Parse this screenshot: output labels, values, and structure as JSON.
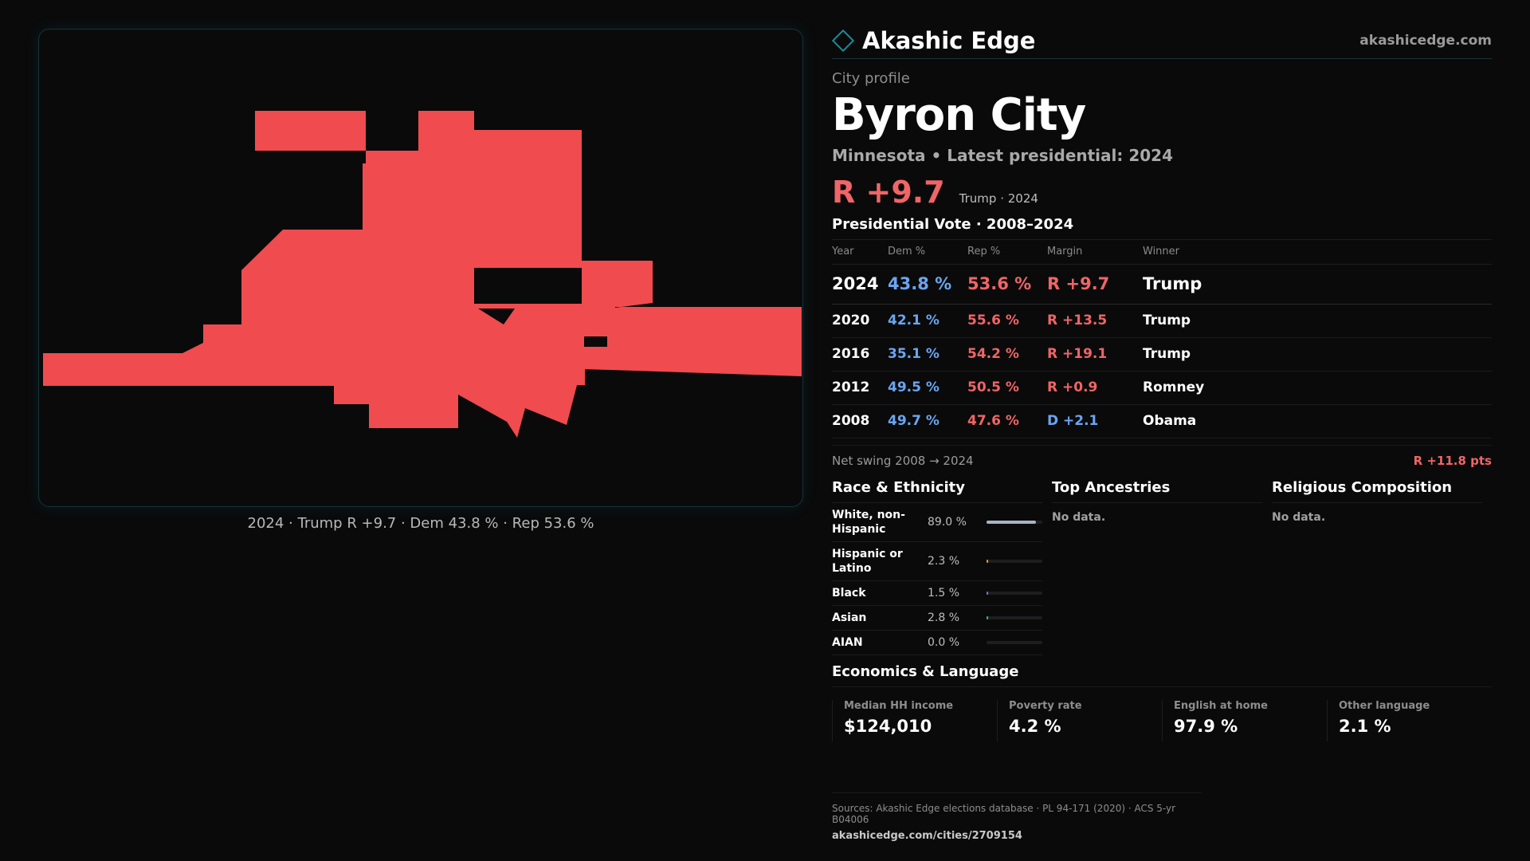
{
  "brand": {
    "name": "Akashic Edge",
    "url": "akashicedge.com",
    "accent": "#1f8a98"
  },
  "map": {
    "fill_color": "#f04b4e",
    "caption": "2024 · Trump R +9.7 · Dem 43.8 % · Rep 53.6 %"
  },
  "profile": {
    "kicker": "City profile",
    "city": "Byron City",
    "subline": "Minnesota • Latest presidential: 2024",
    "headline_margin": "R +9.7",
    "headline_who": "Trump · 2024"
  },
  "vote": {
    "title": "Presidential Vote · 2008–2024",
    "headers": {
      "year": "Year",
      "dem": "Dem %",
      "rep": "Rep %",
      "margin": "Margin",
      "winner": "Winner"
    },
    "rows": [
      {
        "year": "2024",
        "dem": "43.8 %",
        "rep": "53.6 %",
        "margin": "R +9.7",
        "party": "R",
        "winner": "Trump"
      },
      {
        "year": "2020",
        "dem": "42.1 %",
        "rep": "55.6 %",
        "margin": "R +13.5",
        "party": "R",
        "winner": "Trump"
      },
      {
        "year": "2016",
        "dem": "35.1 %",
        "rep": "54.2 %",
        "margin": "R +19.1",
        "party": "R",
        "winner": "Trump"
      },
      {
        "year": "2012",
        "dem": "49.5 %",
        "rep": "50.5 %",
        "margin": "R +0.9",
        "party": "R",
        "winner": "Romney"
      },
      {
        "year": "2008",
        "dem": "49.7 %",
        "rep": "47.6 %",
        "margin": "D +2.1",
        "party": "D",
        "winner": "Obama"
      }
    ],
    "colors": {
      "dem": "#6aa6f0",
      "rep": "#f06567"
    }
  },
  "swing": {
    "label": "Net swing 2008 → 2024",
    "value": "R +11.8 pts"
  },
  "race": {
    "title": "Race & Ethnicity",
    "rows": [
      {
        "label": "White, non-Hispanic",
        "pct": "89.0 %",
        "value": 89.0,
        "color": "#a9b3c6"
      },
      {
        "label": "Hispanic or Latino",
        "pct": "2.3 %",
        "value": 2.3,
        "color": "#e0a12a"
      },
      {
        "label": "Black",
        "pct": "1.5 %",
        "value": 1.5,
        "color": "#8a6fd0"
      },
      {
        "label": "Asian",
        "pct": "2.8 %",
        "value": 2.8,
        "color": "#2fbf8f"
      },
      {
        "label": "AIAN",
        "pct": "0.0 %",
        "value": 0.0,
        "color": "#c07040"
      }
    ]
  },
  "ancestries": {
    "title": "Top Ancestries",
    "nodata": "No data."
  },
  "religion": {
    "title": "Religious Composition",
    "nodata": "No data."
  },
  "economics": {
    "title": "Economics & Language",
    "cells": [
      {
        "label": "Median HH income",
        "value": "$124,010"
      },
      {
        "label": "Poverty rate",
        "value": "4.2 %"
      },
      {
        "label": "English at home",
        "value": "97.9 %"
      },
      {
        "label": "Other language",
        "value": "2.1 %"
      }
    ]
  },
  "sources": {
    "text": "Sources: Akashic Edge elections database · PL 94-171 (2020) · ACS 5-yr B04006",
    "link": "akashicedge.com/cities/2709154"
  }
}
